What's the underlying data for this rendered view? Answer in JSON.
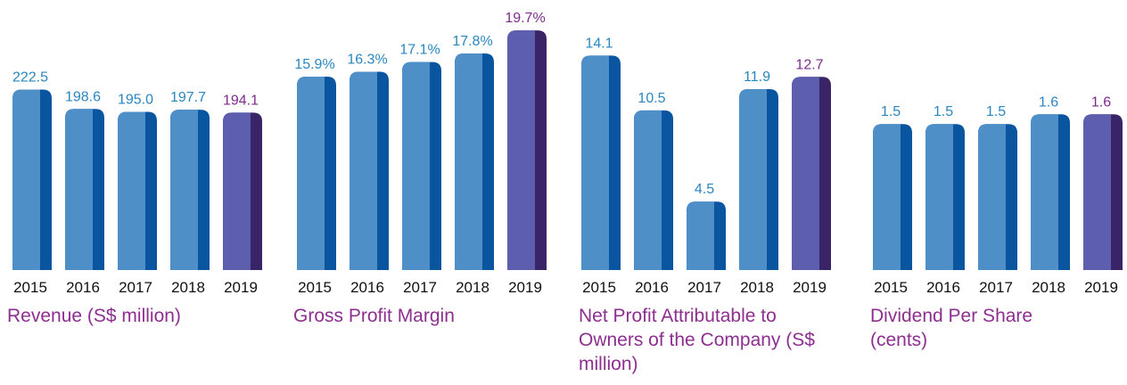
{
  "chart_data": [
    {
      "type": "bar",
      "title": "Revenue (S$ million)",
      "categories": [
        "2015",
        "2016",
        "2017",
        "2018",
        "2019"
      ],
      "values": [
        222.5,
        198.6,
        195.0,
        197.7,
        194.1
      ],
      "value_labels": [
        "222.5",
        "198.6",
        "195.0",
        "197.7",
        "194.1"
      ],
      "ylim": [
        0,
        300
      ],
      "colors": [
        "#4f8fc8",
        "#4f8fc8",
        "#4f8fc8",
        "#4f8fc8",
        "#5d5fae"
      ],
      "side_colors": [
        "#0a55a0",
        "#0a55a0",
        "#0a55a0",
        "#0a55a0",
        "#3a2468"
      ],
      "label_colors": [
        "#2a86bf",
        "#2a86bf",
        "#2a86bf",
        "#2a86bf",
        "#7d2a8c"
      ]
    },
    {
      "type": "bar",
      "title": "Gross Profit Margin",
      "categories": [
        "2015",
        "2016",
        "2017",
        "2018",
        "2019"
      ],
      "values": [
        15.9,
        16.3,
        17.1,
        17.8,
        19.7
      ],
      "value_labels": [
        "15.9%",
        "16.3%",
        "17.1%",
        "17.8%",
        "19.7%"
      ],
      "ylim": [
        0,
        20
      ],
      "colors": [
        "#4f8fc8",
        "#4f8fc8",
        "#4f8fc8",
        "#4f8fc8",
        "#5d5fae"
      ],
      "side_colors": [
        "#0a55a0",
        "#0a55a0",
        "#0a55a0",
        "#0a55a0",
        "#3a2468"
      ],
      "label_colors": [
        "#2a86bf",
        "#2a86bf",
        "#2a86bf",
        "#2a86bf",
        "#7d2a8c"
      ]
    },
    {
      "type": "bar",
      "title": "Net Profit Attributable to Owners of the Company (S$ million)",
      "categories": [
        "2015",
        "2016",
        "2017",
        "2018",
        "2019"
      ],
      "values": [
        14.1,
        10.5,
        4.5,
        11.9,
        12.7
      ],
      "ylim": [
        0,
        16
      ],
      "colors": [
        "#4f8fc8",
        "#4f8fc8",
        "#4f8fc8",
        "#4f8fc8",
        "#5d5fae"
      ],
      "side_colors": [
        "#0a55a0",
        "#0a55a0",
        "#0a55a0",
        "#0a55a0",
        "#3a2468"
      ],
      "label_colors": [
        "#2a86bf",
        "#2a86bf",
        "#2a86bf",
        "#2a86bf",
        "#7d2a8c"
      ]
    },
    {
      "type": "bar",
      "title": "Dividend Per Share (cents)",
      "categories": [
        "2015",
        "2016",
        "2017",
        "2018",
        "2019"
      ],
      "values": [
        1.5,
        1.5,
        1.5,
        1.6,
        1.6
      ],
      "ylim": [
        0,
        2.5
      ],
      "colors": [
        "#4f8fc8",
        "#4f8fc8",
        "#4f8fc8",
        "#4f8fc8",
        "#5d5fae"
      ],
      "side_colors": [
        "#0a55a0",
        "#0a55a0",
        "#0a55a0",
        "#0a55a0",
        "#3a2468"
      ],
      "label_colors": [
        "#2a86bf",
        "#2a86bf",
        "#2a86bf",
        "#2a86bf",
        "#7d2a8c"
      ]
    }
  ]
}
